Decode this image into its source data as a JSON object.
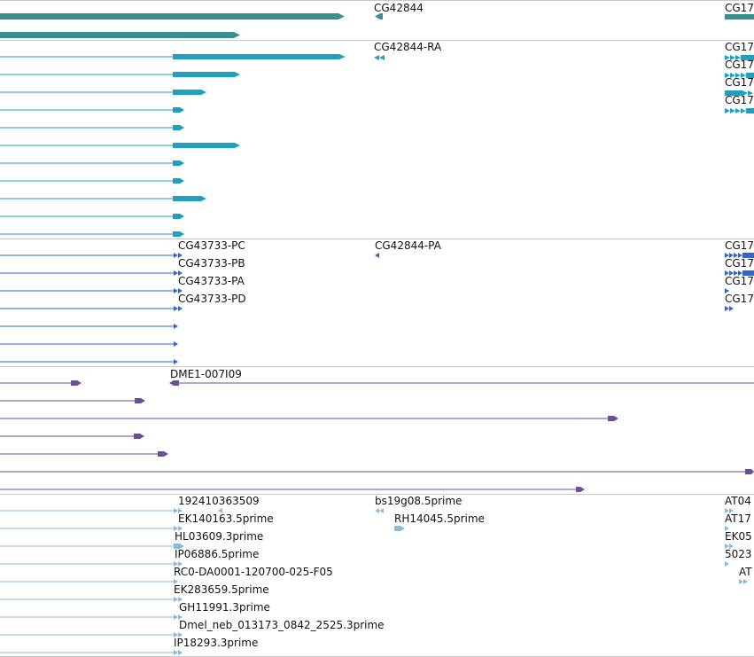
{
  "colors": {
    "gene": "#3a8e8e",
    "transcript": "#1fa0bf",
    "protein": "#3366cc",
    "est_alignment": "#6a4f9c",
    "est_read": "#88bbe0",
    "separator": "#c9c9c9"
  },
  "tracks": [
    {
      "id": "genes",
      "labels": [
        "CG42844",
        "CG17"
      ]
    },
    {
      "id": "transcripts",
      "labels": [
        "CG42844-RA",
        "CG17",
        "CG17",
        "CG17",
        "CG17"
      ]
    },
    {
      "id": "proteins",
      "labels": [
        "CG43733-PC",
        "CG43733-PB",
        "CG43733-PA",
        "CG43733-PD",
        "CG42844-PA",
        "CG17",
        "CG17",
        "CG17",
        "CG17"
      ]
    },
    {
      "id": "alignments",
      "labels": [
        "DME1-007I09"
      ]
    },
    {
      "id": "est_reads",
      "labels": [
        "192410363509",
        "EK140163.5prime",
        "HL03609.3prime",
        "IP06886.5prime",
        "RC0-DA0001-120700-025-F05",
        "EK283659.5prime",
        "GH11991.3prime",
        "Dmel_neb_013173_0842_2525.3prime",
        "IP18293.3prime",
        "bs19g08.5prime",
        "RH14045.5prime",
        "AT04",
        "AT17",
        "EK05",
        "5023",
        "AT"
      ]
    }
  ]
}
